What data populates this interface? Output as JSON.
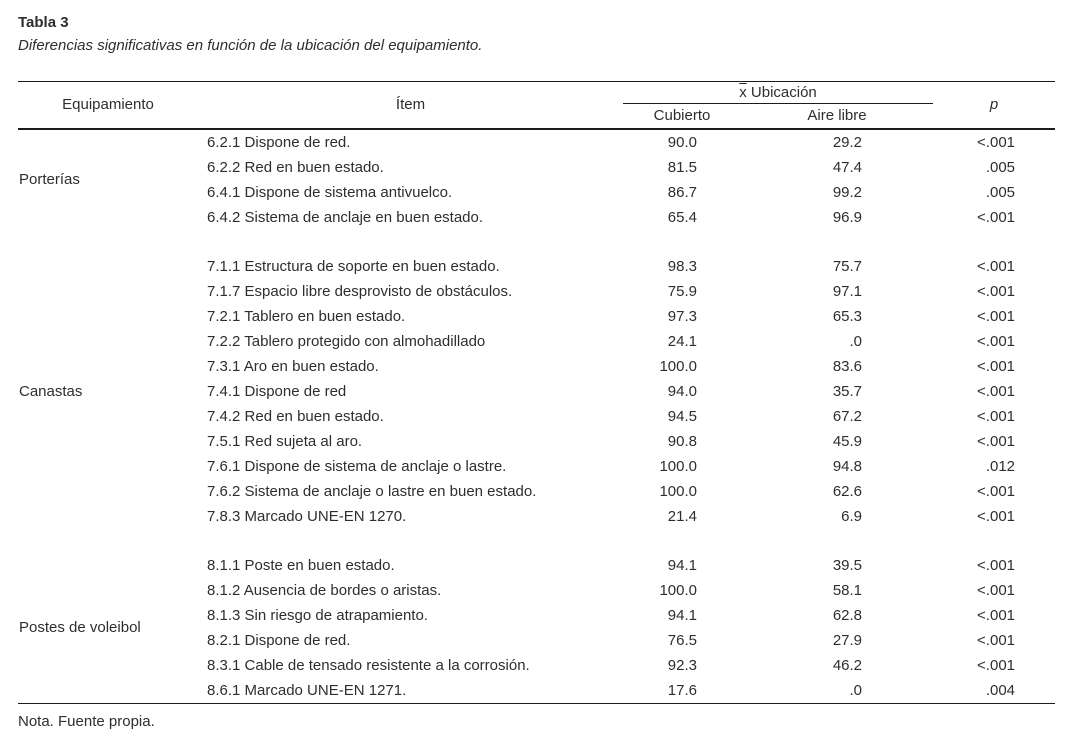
{
  "colors": {
    "background": "#ffffff",
    "text": "#2e2e2e",
    "rule": "#1c1c1c"
  },
  "title": "Tabla 3",
  "caption": "Diferencias significativas en función de la ubicación del equipamiento.",
  "note": "Nota. Fuente propia.",
  "table": {
    "headers": {
      "equipment": "Equipamiento",
      "item": "Ítem",
      "location_mean_symbol": "x",
      "location_label": " Ubicación",
      "covered": "Cubierto",
      "open_air": "Aire libre",
      "p": "p"
    },
    "groups": [
      {
        "equipment": "Porterías",
        "rows": [
          {
            "item": "6.2.1 Dispone de red.",
            "covered": "90.0",
            "open_air": "29.2",
            "p": "<.001"
          },
          {
            "item": "6.2.2 Red en buen estado.",
            "covered": "81.5",
            "open_air": "47.4",
            "p": ".005"
          },
          {
            "item": "6.4.1 Dispone de sistema antivuelco.",
            "covered": "86.7",
            "open_air": "99.2",
            "p": ".005"
          },
          {
            "item": "6.4.2 Sistema de anclaje en buen estado.",
            "covered": "65.4",
            "open_air": "96.9",
            "p": "<.001"
          }
        ]
      },
      {
        "equipment": "Canastas",
        "rows": [
          {
            "item": "7.1.1 Estructura de soporte en buen estado.",
            "covered": "98.3",
            "open_air": "75.7",
            "p": "<.001"
          },
          {
            "item": "7.1.7 Espacio libre desprovisto de obstáculos.",
            "covered": "75.9",
            "open_air": "97.1",
            "p": "<.001"
          },
          {
            "item": "7.2.1 Tablero en buen estado.",
            "covered": "97.3",
            "open_air": "65.3",
            "p": "<.001"
          },
          {
            "item": "7.2.2 Tablero protegido con almohadillado",
            "covered": "24.1",
            "open_air": ".0",
            "p": "<.001"
          },
          {
            "item": "7.3.1 Aro en buen estado.",
            "covered": "100.0",
            "open_air": "83.6",
            "p": "<.001"
          },
          {
            "item": "7.4.1 Dispone de red",
            "covered": "94.0",
            "open_air": "35.7",
            "p": "<.001"
          },
          {
            "item": "7.4.2 Red en buen estado.",
            "covered": "94.5",
            "open_air": "67.2",
            "p": "<.001"
          },
          {
            "item": "7.5.1 Red sujeta al aro.",
            "covered": "90.8",
            "open_air": "45.9",
            "p": "<.001"
          },
          {
            "item": "7.6.1 Dispone de sistema de anclaje o lastre.",
            "covered": "100.0",
            "open_air": "94.8",
            "p": ".012"
          },
          {
            "item": "7.6.2 Sistema de anclaje o lastre en buen estado.",
            "covered": "100.0",
            "open_air": "62.6",
            "p": "<.001"
          },
          {
            "item": "7.8.3 Marcado UNE-EN 1270.",
            "covered": "21.4",
            "open_air": "6.9",
            "p": "<.001"
          }
        ]
      },
      {
        "equipment": "Postes de voleibol",
        "rows": [
          {
            "item": "8.1.1 Poste en buen estado.",
            "covered": "94.1",
            "open_air": "39.5",
            "p": "<.001"
          },
          {
            "item": "8.1.2 Ausencia de bordes o aristas.",
            "covered": "100.0",
            "open_air": "58.1",
            "p": "<.001"
          },
          {
            "item": "8.1.3 Sin riesgo de atrapamiento.",
            "covered": "94.1",
            "open_air": "62.8",
            "p": "<.001"
          },
          {
            "item": "8.2.1 Dispone de red.",
            "covered": "76.5",
            "open_air": "27.9",
            "p": "<.001"
          },
          {
            "item": "8.3.1 Cable de tensado resistente a la corrosión.",
            "covered": "92.3",
            "open_air": "46.2",
            "p": "<.001"
          },
          {
            "item": "8.6.1 Marcado UNE-EN 1271.",
            "covered": "17.6",
            "open_air": ".0",
            "p": ".004"
          }
        ]
      }
    ]
  }
}
